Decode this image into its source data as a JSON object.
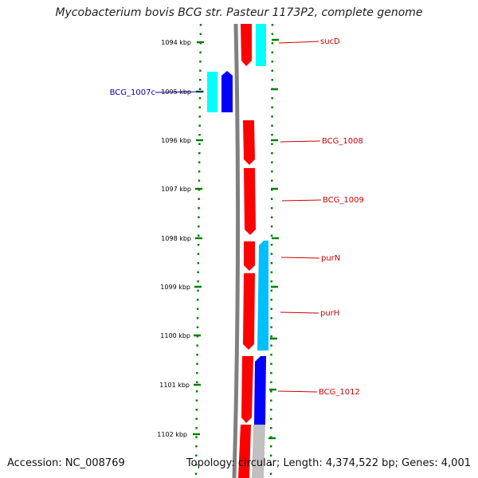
{
  "title": "Mycobacterium bovis BCG str. Pasteur 1173P2, complete genome",
  "footer": {
    "accession": "Accession: NC_008769",
    "topology": "Topology: circular; Length: 4,374,522 bp; Genes: 4,001"
  },
  "colors": {
    "forward_gene": "#ff0000",
    "reverse_gene_cyan": "#00ffff",
    "reverse_gene_blue": "#0000ff",
    "reverse_gene_light_blue": "#00bfff",
    "backbone": "#808080",
    "ticks": "#008000",
    "forward_label": "#cc0000",
    "reverse_label": "#0000aa"
  },
  "ruler": {
    "unit": "kbp",
    "labels": [
      "1094 kbp",
      "1095 kbp",
      "1096 kbp",
      "1097 kbp",
      "1098 kbp",
      "1099 kbp",
      "1100 kbp",
      "1101 kbp",
      "1102 kbp"
    ]
  },
  "gene_labels": [
    {
      "name": "sucD",
      "strand": "forward"
    },
    {
      "name": "BCG_1007c",
      "strand": "reverse"
    },
    {
      "name": "BCG_1008",
      "strand": "forward"
    },
    {
      "name": "BCG_1009",
      "strand": "forward"
    },
    {
      "name": "purN",
      "strand": "forward"
    },
    {
      "name": "purH",
      "strand": "forward"
    },
    {
      "name": "BCG_1012",
      "strand": "forward"
    }
  ]
}
